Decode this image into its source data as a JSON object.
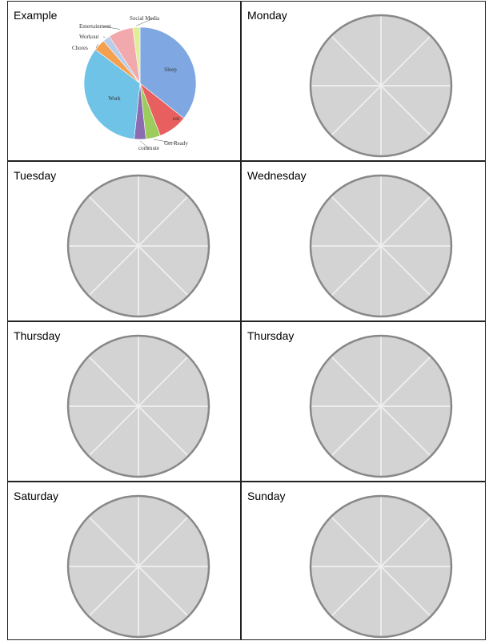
{
  "cells": [
    {
      "label": "Example"
    },
    {
      "label": "Monday"
    },
    {
      "label": "Tuesday"
    },
    {
      "label": "Wednesday"
    },
    {
      "label": "Thursday"
    },
    {
      "label": "Thursday"
    },
    {
      "label": "Saturday"
    },
    {
      "label": "Sunday"
    }
  ],
  "wheel": {
    "segments": 8,
    "fill_color": "#d3d3d3",
    "stroke_color": "#888888",
    "divider_color": "#efefef"
  },
  "example_chart": {
    "chart_data": {
      "type": "pie",
      "title": "",
      "slices": [
        {
          "name": "Sleep",
          "value": 8.5,
          "color": "#7fa8e3"
        },
        {
          "name": "eat",
          "value": 2.0,
          "color": "#e85f5f"
        },
        {
          "name": "Get Ready",
          "value": 1.0,
          "color": "#9bcc5c"
        },
        {
          "name": "commute",
          "value": 0.8,
          "color": "#8b6cb3"
        },
        {
          "name": "Work",
          "value": 8.0,
          "color": "#6fc3e6"
        },
        {
          "name": "Chores",
          "value": 0.8,
          "color": "#f5a04f"
        },
        {
          "name": "Workout",
          "value": 0.5,
          "color": "#b9cce8"
        },
        {
          "name": "Entertainment",
          "value": 1.7,
          "color": "#f2a9ad"
        },
        {
          "name": "Social Media",
          "value": 0.5,
          "color": "#e0ee98"
        }
      ]
    }
  }
}
